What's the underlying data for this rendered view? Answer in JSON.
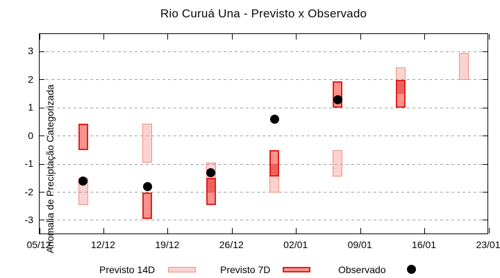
{
  "title": "Rio Curuá Una - Previsto x Observado",
  "colors": {
    "axis": "#000000",
    "grid": "#9e9e9e",
    "forecast14d_fill": "rgba(240,110,100,0.30)",
    "forecast14d_border": "#ef8e86",
    "forecast7d_fill": "#f9938c",
    "forecast7d_border": "#e3201c",
    "overlap_fill": "#ee625e",
    "overlap_divider": "#e4564f",
    "observed_dot": "#000000"
  },
  "chart_data": {
    "type": "bar",
    "subtype": "range-boxes-with-scatter",
    "title": "Rio Curuá Una - Previsto x Observado",
    "xlabel": "",
    "ylabel": "Anomalia de Preciptação Categorizada",
    "ylim": [
      -3.52,
      3.63
    ],
    "yticks": [
      {
        "v": 3,
        "label": "3"
      },
      {
        "v": 2,
        "label": "2"
      },
      {
        "v": 1,
        "label": "1"
      },
      {
        "v": 0,
        "label": "0"
      },
      {
        "v": -1,
        "label": "-1"
      },
      {
        "v": -2,
        "label": "-2"
      },
      {
        "v": -3,
        "label": "-3"
      }
    ],
    "xlim_days": [
      0,
      49
    ],
    "xticks": [
      {
        "day": 0,
        "label": "05/12"
      },
      {
        "day": 7,
        "label": "12/12"
      },
      {
        "day": 14,
        "label": "19/12"
      },
      {
        "day": 21,
        "label": "26/12"
      },
      {
        "day": 28,
        "label": "02/01"
      },
      {
        "day": 35,
        "label": "09/01"
      },
      {
        "day": 42,
        "label": "16/01"
      },
      {
        "day": 49,
        "label": "23/01"
      }
    ],
    "grid": "horizontal-dashed",
    "legend_position": "below-plot",
    "series": [
      {
        "name": "Previsto 14D",
        "type": "range",
        "points": [
          {
            "date": "10/12",
            "day": 4.75,
            "low": -2.45,
            "high": -1.5
          },
          {
            "date": "17/12",
            "day": 11.75,
            "low": -0.95,
            "high": 0.45
          },
          {
            "date": "24/12",
            "day": 18.7,
            "low": -2.0,
            "high": -0.95
          },
          {
            "date": "31/12",
            "day": 25.6,
            "low": -2.0,
            "high": -1.0
          },
          {
            "date": "07/01",
            "day": 32.5,
            "low": -1.45,
            "high": -0.5
          },
          {
            "date": "14/01",
            "day": 39.4,
            "low": 1.5,
            "high": 2.45
          },
          {
            "date": "21/01",
            "day": 46.3,
            "low": 2.0,
            "high": 2.95
          }
        ]
      },
      {
        "name": "Previsto 7D",
        "type": "range",
        "points": [
          {
            "date": "10/12",
            "day": 4.75,
            "low": -0.5,
            "high": 0.45
          },
          {
            "date": "17/12",
            "day": 11.75,
            "low": -2.95,
            "high": -2.0
          },
          {
            "date": "24/12",
            "day": 18.7,
            "low": -2.45,
            "high": -1.5
          },
          {
            "date": "31/12",
            "day": 25.6,
            "low": -1.45,
            "high": -0.5
          },
          {
            "date": "07/01",
            "day": 32.5,
            "low": 1.0,
            "high": 1.95
          },
          {
            "date": "14/01",
            "day": 39.4,
            "low": 1.0,
            "high": 2.0
          }
        ]
      },
      {
        "name": "Observado",
        "type": "scatter",
        "points": [
          {
            "date": "10/12",
            "day": 4.75,
            "value": -1.6
          },
          {
            "date": "17/12",
            "day": 11.75,
            "value": -1.8
          },
          {
            "date": "24/12",
            "day": 18.7,
            "value": -1.3
          },
          {
            "date": "31/12",
            "day": 25.6,
            "value": 0.6
          },
          {
            "date": "07/01",
            "day": 32.5,
            "value": 1.3
          }
        ]
      }
    ]
  }
}
